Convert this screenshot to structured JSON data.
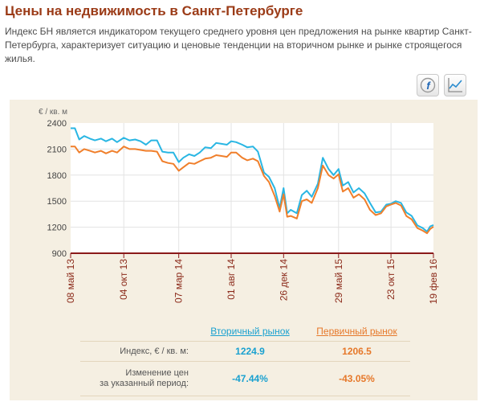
{
  "page": {
    "title": "Цены на недвижимость в Санкт-Петербурге",
    "description": "Индекс БН является индикатором текущего среднего уровня цен предложения на рынке квартир Санкт-Петербурга, характеризует ситуацию и ценовые тенденции на вторичном рынке и рынке строящегося жилья."
  },
  "toolbar": {
    "flash_icon": "flash-icon",
    "chart_icon": "line-chart-icon"
  },
  "chart_data": {
    "type": "line",
    "ylabel": "€ / кв. м",
    "ylim": [
      900,
      2400
    ],
    "yticks": [
      "2400",
      "2100",
      "1800",
      "1500",
      "1200",
      "900"
    ],
    "grid": true,
    "x_ticks": [
      "08 май 13",
      "04 окт 13",
      "07 мар 14",
      "01 авг 14",
      "26 дек 14",
      "29 май 15",
      "23 окт 15",
      "19 фев 16"
    ],
    "series": [
      {
        "name": "Вторичный рынок",
        "color": "#29b6e3",
        "x": [
          "2013-05-08",
          "2013-05-20",
          "2013-06-01",
          "2013-06-15",
          "2013-07-01",
          "2013-07-15",
          "2013-08-01",
          "2013-08-15",
          "2013-09-01",
          "2013-09-15",
          "2013-10-04",
          "2013-10-20",
          "2013-11-05",
          "2013-11-20",
          "2013-12-05",
          "2013-12-20",
          "2014-01-05",
          "2014-01-20",
          "2014-02-05",
          "2014-02-20",
          "2014-03-07",
          "2014-03-20",
          "2014-04-05",
          "2014-04-20",
          "2014-05-05",
          "2014-05-20",
          "2014-06-05",
          "2014-06-20",
          "2014-07-05",
          "2014-07-20",
          "2014-08-01",
          "2014-08-15",
          "2014-09-01",
          "2014-09-15",
          "2014-10-01",
          "2014-10-15",
          "2014-11-01",
          "2014-11-15",
          "2014-12-01",
          "2014-12-15",
          "2014-12-26",
          "2015-01-05",
          "2015-01-15",
          "2015-02-01",
          "2015-02-15",
          "2015-03-01",
          "2015-03-15",
          "2015-04-01",
          "2015-04-15",
          "2015-05-01",
          "2015-05-15",
          "2015-05-29",
          "2015-06-10",
          "2015-06-25",
          "2015-07-10",
          "2015-07-25",
          "2015-08-10",
          "2015-08-25",
          "2015-09-10",
          "2015-09-25",
          "2015-10-10",
          "2015-10-23",
          "2015-11-05",
          "2015-11-20",
          "2015-12-05",
          "2015-12-20",
          "2016-01-05",
          "2016-01-20",
          "2016-02-01",
          "2016-02-10",
          "2016-02-19"
        ],
        "values": [
          2340,
          2340,
          2210,
          2250,
          2220,
          2200,
          2220,
          2190,
          2220,
          2180,
          2230,
          2200,
          2210,
          2190,
          2150,
          2200,
          2200,
          2070,
          2060,
          2060,
          1950,
          2000,
          2040,
          2020,
          2060,
          2120,
          2110,
          2170,
          2160,
          2150,
          2190,
          2180,
          2150,
          2120,
          2130,
          2070,
          1830,
          1780,
          1650,
          1420,
          1650,
          1360,
          1400,
          1360,
          1570,
          1620,
          1550,
          1700,
          2000,
          1870,
          1800,
          1870,
          1680,
          1720,
          1600,
          1650,
          1590,
          1480,
          1370,
          1380,
          1460,
          1470,
          1500,
          1480,
          1370,
          1330,
          1220,
          1190,
          1150,
          1210,
          1224.9
        ]
      },
      {
        "name": "Первичный рынок",
        "color": "#f07f2b",
        "x": [
          "2013-05-08",
          "2013-05-20",
          "2013-06-01",
          "2013-06-15",
          "2013-07-01",
          "2013-07-15",
          "2013-08-01",
          "2013-08-15",
          "2013-09-01",
          "2013-09-15",
          "2013-10-04",
          "2013-10-20",
          "2013-11-05",
          "2013-11-20",
          "2013-12-05",
          "2013-12-20",
          "2014-01-05",
          "2014-01-20",
          "2014-02-05",
          "2014-02-20",
          "2014-03-07",
          "2014-03-20",
          "2014-04-05",
          "2014-04-20",
          "2014-05-05",
          "2014-05-20",
          "2014-06-05",
          "2014-06-20",
          "2014-07-05",
          "2014-07-20",
          "2014-08-01",
          "2014-08-15",
          "2014-09-01",
          "2014-09-15",
          "2014-10-01",
          "2014-10-15",
          "2014-11-01",
          "2014-11-15",
          "2014-12-01",
          "2014-12-15",
          "2014-12-26",
          "2015-01-05",
          "2015-01-15",
          "2015-02-01",
          "2015-02-15",
          "2015-03-01",
          "2015-03-15",
          "2015-04-01",
          "2015-04-15",
          "2015-05-01",
          "2015-05-15",
          "2015-05-29",
          "2015-06-10",
          "2015-06-25",
          "2015-07-10",
          "2015-07-25",
          "2015-08-10",
          "2015-08-25",
          "2015-09-10",
          "2015-09-25",
          "2015-10-10",
          "2015-10-23",
          "2015-11-05",
          "2015-11-20",
          "2015-12-05",
          "2015-12-20",
          "2016-01-05",
          "2016-01-20",
          "2016-02-01",
          "2016-02-10",
          "2016-02-19"
        ],
        "values": [
          2130,
          2130,
          2060,
          2100,
          2080,
          2060,
          2080,
          2050,
          2080,
          2060,
          2130,
          2100,
          2100,
          2090,
          2080,
          2080,
          2070,
          1960,
          1940,
          1930,
          1850,
          1890,
          1940,
          1930,
          1960,
          1990,
          2000,
          2030,
          2020,
          2010,
          2060,
          2060,
          2000,
          1970,
          1990,
          1960,
          1790,
          1720,
          1560,
          1380,
          1580,
          1320,
          1330,
          1300,
          1500,
          1520,
          1480,
          1650,
          1910,
          1800,
          1760,
          1810,
          1610,
          1650,
          1540,
          1580,
          1520,
          1400,
          1340,
          1360,
          1440,
          1460,
          1480,
          1450,
          1330,
          1290,
          1190,
          1160,
          1130,
          1180,
          1206.5
        ]
      }
    ]
  },
  "table": {
    "col1_header": "Вторичный рынок",
    "col2_header": "Первичный рынок",
    "row1_label": "Индекс, € / кв. м:",
    "row1_col1": "1224.9",
    "row1_col2": "1206.5",
    "row2_label_line1": "Изменение цен",
    "row2_label_line2": "за указанный период:",
    "row2_col1": "-47.44%",
    "row2_col2": "-43.05%"
  }
}
